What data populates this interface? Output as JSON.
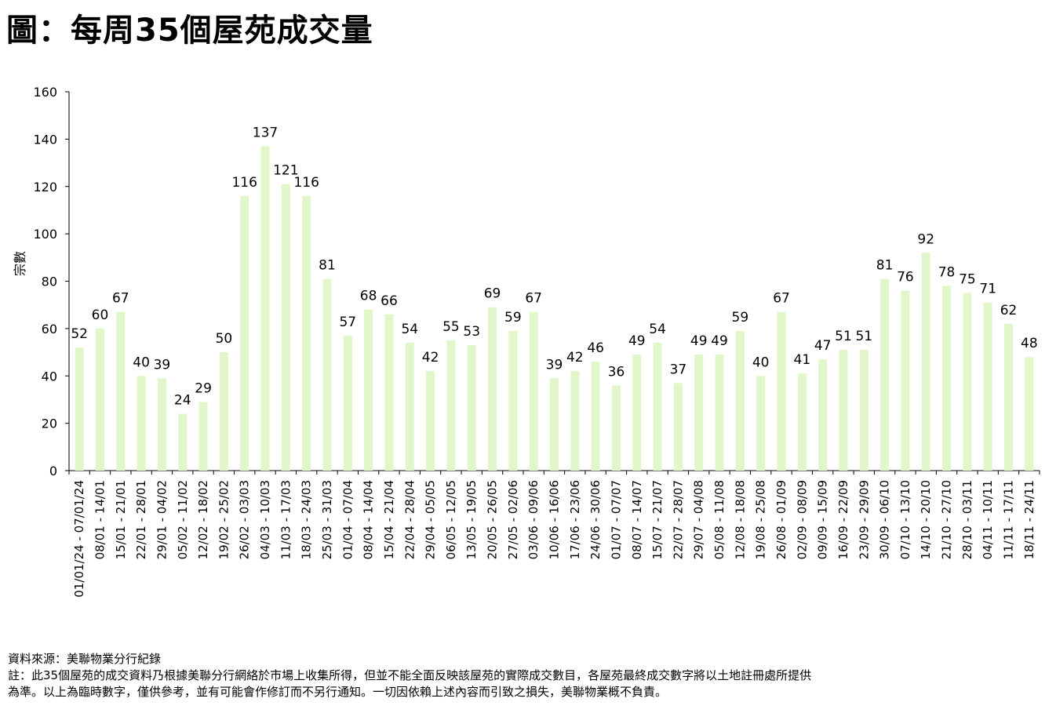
{
  "title": "圖：每周35個屋苑成交量",
  "chart_data": {
    "type": "bar",
    "ylabel": "宗數",
    "xlabel": "",
    "ylim": [
      0,
      160
    ],
    "yticks": [
      0,
      20,
      40,
      60,
      80,
      100,
      120,
      140,
      160
    ],
    "grid": false,
    "bar_color": "#e2f7c9",
    "categories": [
      "01/01/24 - 07/01/24",
      "08/01 - 14/01",
      "15/01 - 21/01",
      "22/01 - 28/01",
      "29/01 - 04/02",
      "05/02 - 11/02",
      "12/02 - 18/02",
      "19/02 - 25/02",
      "26/02 - 03/03",
      "04/03 - 10/03",
      "11/03 - 17/03",
      "18/03 - 24/03",
      "25/03 - 31/03",
      "01/04 - 07/04",
      "08/04 - 14/04",
      "15/04 - 21/04",
      "22/04 - 28/04",
      "29/04 - 05/05",
      "06/05 - 12/05",
      "13/05 - 19/05",
      "20/05 - 26/05",
      "27/05 - 02/06",
      "03/06 - 09/06",
      "10/06 - 16/06",
      "17/06 - 23/06",
      "24/06 - 30/06",
      "01/07 - 07/07",
      "08/07 - 14/07",
      "15/07 - 21/07",
      "22/07 - 28/07",
      "29/07 - 04/08",
      "05/08 - 11/08",
      "12/08 - 18/08",
      "19/08 - 25/08",
      "26/08 - 01/09",
      "02/09 - 08/09",
      "09/09 - 15/09",
      "16/09 - 22/09",
      "23/09 - 29/09",
      "30/09 - 06/10",
      "07/10 - 13/10",
      "14/10 - 20/10",
      "21/10 - 27/10",
      "28/10 - 03/11",
      "04/11 - 10/11",
      "11/11 - 17/11",
      "18/11 - 24/11"
    ],
    "values": [
      52,
      60,
      67,
      40,
      39,
      24,
      29,
      50,
      116,
      137,
      121,
      116,
      81,
      57,
      68,
      66,
      54,
      42,
      55,
      53,
      69,
      59,
      67,
      39,
      42,
      46,
      36,
      49,
      54,
      37,
      49,
      49,
      59,
      40,
      67,
      41,
      47,
      51,
      51,
      81,
      76,
      92,
      78,
      75,
      71,
      62,
      48
    ]
  },
  "notes": {
    "source": "資料來源：美聯物業分行紀錄",
    "note_line1": "註：此35個屋苑的成交資料乃根據美聯分行網絡於市場上收集所得，但並不能全面反映該屋苑的實際成交數目，各屋苑最終成交數字將以土地註冊處所提供",
    "note_line2": "為準。以上為臨時數字，僅供參考，並有可能會作修訂而不另行通知。一切因依賴上述內容而引致之損失，美聯物業概不負責。"
  }
}
